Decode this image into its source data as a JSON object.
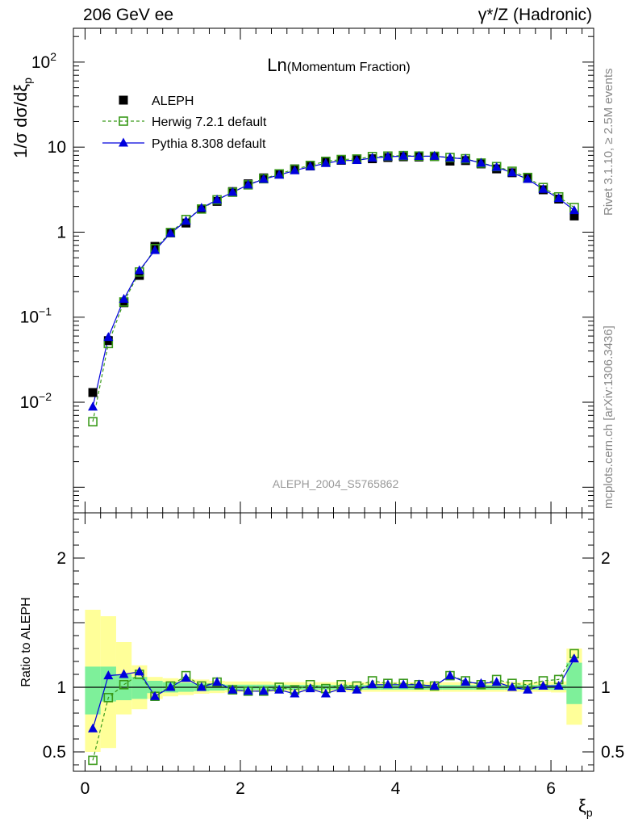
{
  "header": {
    "left": "206 GeV ee",
    "right": "γ*/Z (Hadronic)"
  },
  "side_labels": {
    "rivet": "Rivet 3.1.10, ≥ 2.5M events",
    "mcplots": "mcplots.cern.ch [arXiv:1306.3436]"
  },
  "chart_data": [
    {
      "type": "scatter",
      "panel": "main",
      "title_main": "Ln",
      "title_sub": "(Momentum Fraction)",
      "ylabel": "1/σ dσ/dξ",
      "ylabel_sub": "p",
      "xlabel": "ξ",
      "xlabel_sub": "p",
      "yscale": "log",
      "ylim": [
        0.0005,
        250
      ],
      "xlim": [
        -0.15,
        6.55
      ],
      "yticks": [
        {
          "value": 0.01,
          "base": "10",
          "exp": "−2"
        },
        {
          "value": 0.1,
          "base": "10",
          "exp": "−1"
        },
        {
          "value": 1,
          "base": "1",
          "exp": ""
        },
        {
          "value": 10,
          "base": "10",
          "exp": ""
        },
        {
          "value": 100,
          "base": "10",
          "exp": "2"
        }
      ],
      "watermark": "ALEPH_2004_S5765862",
      "legend_position": "top-left",
      "x": [
        0.1,
        0.3,
        0.5,
        0.7,
        0.9,
        1.1,
        1.3,
        1.5,
        1.7,
        1.9,
        2.1,
        2.3,
        2.5,
        2.7,
        2.9,
        3.1,
        3.3,
        3.5,
        3.7,
        3.9,
        4.1,
        4.3,
        4.5,
        4.7,
        4.9,
        5.1,
        5.3,
        5.5,
        5.7,
        5.9,
        6.1,
        6.3
      ],
      "series": [
        {
          "name": "ALEPH",
          "color": "#000000",
          "marker": "filled-square",
          "line": "none",
          "values": [
            0.013,
            0.053,
            0.148,
            0.31,
            0.68,
            0.98,
            1.28,
            1.88,
            2.3,
            3.0,
            3.7,
            4.35,
            4.85,
            5.55,
            6.0,
            6.85,
            7.0,
            7.15,
            7.3,
            7.55,
            7.7,
            7.65,
            7.75,
            6.85,
            6.95,
            6.35,
            5.55,
            5.0,
            4.3,
            3.15,
            2.45,
            1.55
          ]
        },
        {
          "name": "Herwig 7.2.1 default",
          "color": "#3a9a1a",
          "marker": "open-square",
          "line": "dashed",
          "values": [
            0.0059,
            0.049,
            0.151,
            0.34,
            0.64,
            0.99,
            1.41,
            1.87,
            2.4,
            2.95,
            3.6,
            4.25,
            4.85,
            5.5,
            6.1,
            6.8,
            7.15,
            7.25,
            7.75,
            7.85,
            7.95,
            7.85,
            7.8,
            7.55,
            7.3,
            6.5,
            5.9,
            5.2,
            4.4,
            3.35,
            2.6,
            1.95
          ]
        },
        {
          "name": "Pythia 8.308 default",
          "color": "#0000dd",
          "marker": "filled-triangle",
          "line": "solid",
          "values": [
            0.0088,
            0.058,
            0.163,
            0.355,
            0.61,
            0.97,
            1.35,
            1.92,
            2.4,
            2.95,
            3.6,
            4.2,
            4.7,
            5.3,
            5.9,
            6.45,
            6.95,
            7.0,
            7.45,
            7.7,
            7.85,
            7.8,
            7.85,
            7.5,
            7.25,
            6.5,
            5.8,
            5.0,
            4.2,
            3.2,
            2.5,
            1.8
          ]
        }
      ]
    },
    {
      "type": "line",
      "panel": "ratio",
      "ylabel": "Ratio to ALEPH",
      "xlabel": "ξ",
      "xlabel_sub": "p",
      "xlim": [
        -0.15,
        6.55
      ],
      "ylim": [
        0.35,
        2.35
      ],
      "yticks": [
        0.5,
        1,
        2
      ],
      "xticks": [
        0,
        2,
        4,
        6
      ],
      "x": [
        0.1,
        0.3,
        0.5,
        0.7,
        0.9,
        1.1,
        1.3,
        1.5,
        1.7,
        1.9,
        2.1,
        2.3,
        2.5,
        2.7,
        2.9,
        3.1,
        3.3,
        3.5,
        3.7,
        3.9,
        4.1,
        4.3,
        4.5,
        4.7,
        4.9,
        5.1,
        5.3,
        5.5,
        5.7,
        5.9,
        6.1,
        6.3
      ],
      "band_edges": [
        0.0,
        0.2,
        0.4,
        0.6,
        0.8,
        1.0,
        1.2,
        1.4,
        1.6,
        1.8,
        2.0,
        2.2,
        2.4,
        2.6,
        2.8,
        3.0,
        3.2,
        3.4,
        3.6,
        3.8,
        4.0,
        4.2,
        4.4,
        4.6,
        4.8,
        5.0,
        5.2,
        5.4,
        5.6,
        5.8,
        6.0,
        6.2,
        6.4
      ],
      "bands": [
        {
          "name": "stat",
          "color": "#7ef09a",
          "lower": [
            0.79,
            0.89,
            0.9,
            0.91,
            0.955,
            0.96,
            0.965,
            0.97,
            0.975,
            0.98,
            0.98,
            0.98,
            0.98,
            0.982,
            0.982,
            0.982,
            0.982,
            0.982,
            0.982,
            0.982,
            0.982,
            0.982,
            0.982,
            0.982,
            0.982,
            0.982,
            0.982,
            0.982,
            0.982,
            0.982,
            0.98,
            0.87
          ],
          "upper": [
            1.16,
            1.16,
            1.1,
            1.08,
            1.05,
            1.04,
            1.035,
            1.03,
            1.025,
            1.02,
            1.02,
            1.02,
            1.02,
            1.018,
            1.018,
            1.018,
            1.018,
            1.018,
            1.018,
            1.018,
            1.018,
            1.018,
            1.018,
            1.018,
            1.018,
            1.018,
            1.018,
            1.018,
            1.018,
            1.018,
            1.02,
            1.19
          ]
        },
        {
          "name": "total",
          "color": "#ffff99",
          "lower": [
            0.5,
            0.53,
            0.79,
            0.83,
            0.91,
            0.93,
            0.94,
            0.95,
            0.955,
            0.96,
            0.965,
            0.965,
            0.965,
            0.965,
            0.965,
            0.965,
            0.965,
            0.965,
            0.965,
            0.965,
            0.965,
            0.965,
            0.965,
            0.965,
            0.965,
            0.965,
            0.965,
            0.965,
            0.965,
            0.965,
            0.96,
            0.71
          ],
          "upper": [
            1.6,
            1.55,
            1.35,
            1.17,
            1.08,
            1.07,
            1.065,
            1.06,
            1.05,
            1.045,
            1.045,
            1.045,
            1.04,
            1.04,
            1.04,
            1.04,
            1.04,
            1.04,
            1.04,
            1.04,
            1.04,
            1.04,
            1.04,
            1.04,
            1.04,
            1.04,
            1.04,
            1.04,
            1.04,
            1.045,
            1.045,
            1.3
          ]
        }
      ],
      "series": [
        {
          "name": "Herwig 7.2.1 default",
          "color": "#3a9a1a",
          "marker": "open-square",
          "line": "dashed",
          "values": [
            0.435,
            0.92,
            1.02,
            1.1,
            0.93,
            1.01,
            1.09,
            1.01,
            1.04,
            0.98,
            0.97,
            0.97,
            1.0,
            0.98,
            1.02,
            0.99,
            1.02,
            1.01,
            1.05,
            1.03,
            1.03,
            1.02,
            1.01,
            1.09,
            1.05,
            1.02,
            1.06,
            1.03,
            1.02,
            1.05,
            1.06,
            1.26
          ]
        },
        {
          "name": "Pythia 8.308 default",
          "color": "#0000dd",
          "marker": "filled-triangle",
          "line": "solid",
          "values": [
            0.68,
            1.09,
            1.1,
            1.12,
            0.93,
            1.0,
            1.07,
            1.0,
            1.04,
            0.98,
            0.97,
            0.97,
            0.98,
            0.95,
            0.99,
            0.95,
            0.99,
            0.98,
            1.02,
            1.02,
            1.02,
            1.02,
            1.01,
            1.09,
            1.04,
            1.03,
            1.04,
            1.0,
            0.98,
            1.01,
            1.01,
            1.22
          ]
        }
      ]
    }
  ]
}
